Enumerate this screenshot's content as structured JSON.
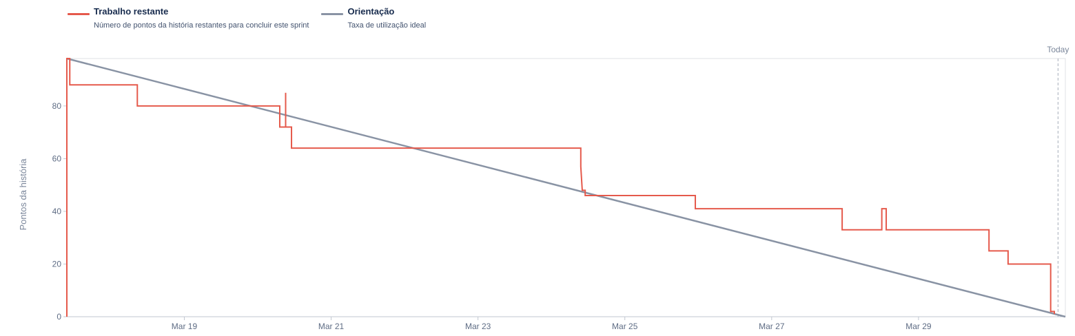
{
  "legend": [
    {
      "title": "Trabalho restante",
      "description": "Número de pontos da história restantes para concluir este sprint",
      "color": "#e5594b"
    },
    {
      "title": "Orientação",
      "description": "Taxa de utilização ideal",
      "color": "#8993a4"
    }
  ],
  "chart_data": {
    "type": "line",
    "ylabel": "Pontos da história",
    "ylim": [
      0,
      98
    ],
    "xlim": [
      0,
      13.6
    ],
    "grid": false,
    "legend_position": "top-left",
    "x_tick_labels": [
      "Mar 19",
      "Mar 21",
      "Mar 23",
      "Mar 25",
      "Mar 27",
      "Mar 29"
    ],
    "x_tick_values": [
      1.6,
      3.6,
      5.6,
      7.6,
      9.6,
      11.6
    ],
    "y_ticks": [
      0,
      20,
      40,
      60,
      80
    ],
    "today_label": "Today",
    "today_x": 13.5,
    "series": [
      {
        "name": "Trabalho restante",
        "color": "#e5594b",
        "points": [
          [
            0.0,
            0
          ],
          [
            0.0,
            98
          ],
          [
            0.04,
            98
          ],
          [
            0.04,
            88
          ],
          [
            0.96,
            88
          ],
          [
            0.96,
            80
          ],
          [
            2.9,
            80
          ],
          [
            2.9,
            72
          ],
          [
            2.98,
            72
          ],
          [
            2.98,
            85
          ],
          [
            2.98,
            72
          ],
          [
            3.06,
            72
          ],
          [
            3.06,
            64
          ],
          [
            7.0,
            64
          ],
          [
            7.0,
            57
          ],
          [
            7.02,
            48
          ],
          [
            7.06,
            48
          ],
          [
            7.06,
            46
          ],
          [
            8.56,
            46
          ],
          [
            8.56,
            41
          ],
          [
            10.56,
            41
          ],
          [
            10.56,
            33
          ],
          [
            11.1,
            33
          ],
          [
            11.1,
            41
          ],
          [
            11.16,
            41
          ],
          [
            11.16,
            33
          ],
          [
            12.56,
            33
          ],
          [
            12.56,
            25
          ],
          [
            12.82,
            25
          ],
          [
            12.82,
            20
          ],
          [
            13.4,
            20
          ],
          [
            13.4,
            2
          ],
          [
            13.45,
            2
          ],
          [
            13.45,
            1
          ]
        ]
      },
      {
        "name": "Orientação",
        "color": "#8993a4",
        "points": [
          [
            0.0,
            98
          ],
          [
            13.6,
            0
          ]
        ]
      }
    ]
  }
}
